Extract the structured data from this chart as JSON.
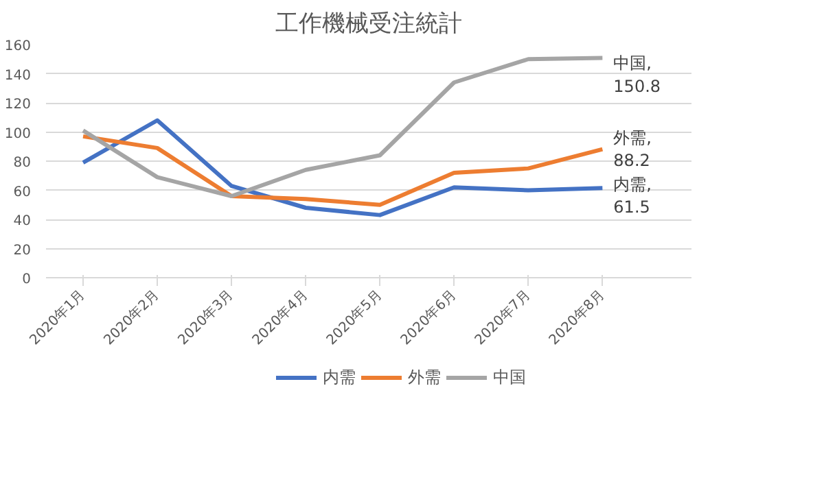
{
  "chart_data": {
    "type": "line",
    "title": "工作機械受注統計",
    "categories": [
      "2020年1月",
      "2020年2月",
      "2020年3月",
      "2020年4月",
      "2020年5月",
      "2020年6月",
      "2020年7月",
      "2020年8月"
    ],
    "series": [
      {
        "name": "内需",
        "color": "#4472c4",
        "values": [
          79,
          108,
          63,
          48,
          43,
          62,
          60,
          61.5
        ],
        "value_labels": [
          null,
          null,
          null,
          null,
          null,
          null,
          null,
          "内需,\n61.5"
        ]
      },
      {
        "name": "外需",
        "color": "#ed7d31",
        "values": [
          97,
          89,
          56,
          54,
          50,
          72,
          75,
          88.2
        ],
        "value_labels": [
          null,
          null,
          null,
          null,
          null,
          null,
          null,
          "外需,\n88.2"
        ]
      },
      {
        "name": "中国",
        "color": "#a5a5a5",
        "values": [
          101,
          69,
          56,
          74,
          84,
          134,
          150,
          150.8
        ],
        "value_labels": [
          null,
          null,
          null,
          null,
          null,
          null,
          null,
          "中国,\n150.8"
        ]
      }
    ],
    "ylim": [
      0,
      160
    ],
    "yticks": [
      0,
      20,
      40,
      60,
      80,
      100,
      120,
      140,
      160
    ],
    "grid": "y",
    "legend": "bottom",
    "marker": "none",
    "line_style": "solid"
  }
}
